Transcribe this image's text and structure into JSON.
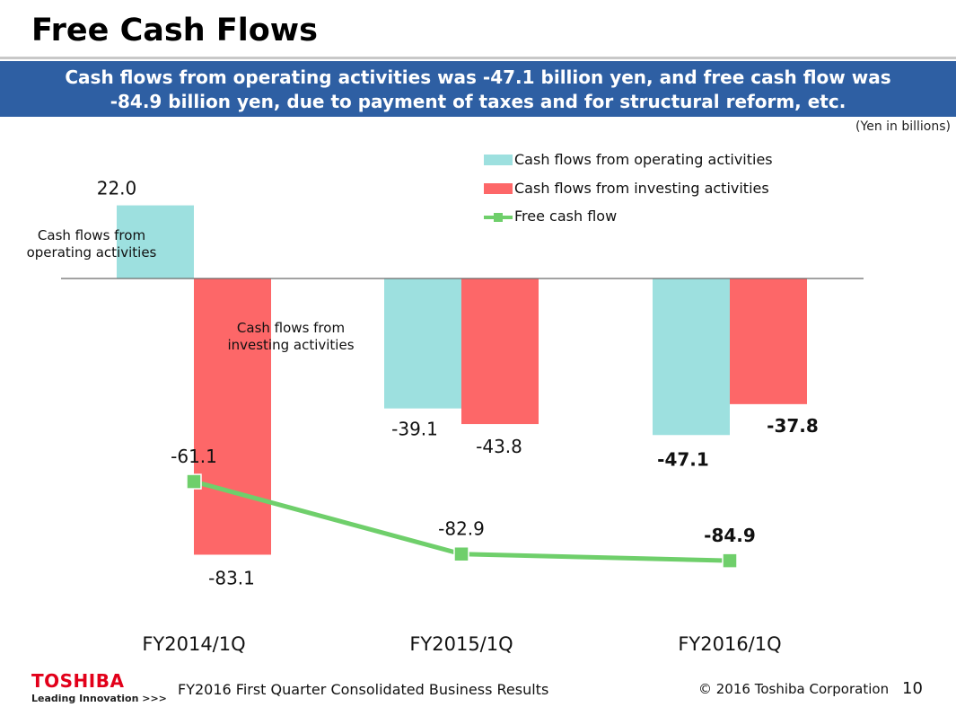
{
  "slide": {
    "title": "Free Cash Flows",
    "banner_line1": "Cash flows from operating activities was -47.1 billion yen, and free cash flow was",
    "banner_line2": "-84.9 billion yen, due to payment of taxes and for structural reform, etc.",
    "units": "(Yen in billions)"
  },
  "colors": {
    "banner": "#2e5fa3",
    "operating": "#9de0df",
    "investing": "#fd6768",
    "free_cash_flow": "#6fcf6b",
    "brand_red": "#e2001a"
  },
  "chart_data": {
    "type": "bar",
    "title": "Free Cash Flows",
    "units": "(Yen in billions)",
    "categories": [
      "FY2014/1Q",
      "FY2015/1Q",
      "FY2016/1Q"
    ],
    "series": [
      {
        "name": "Cash flows from operating activities",
        "kind": "bar",
        "values": [
          22.0,
          -39.1,
          -47.1
        ],
        "labels": [
          "22.0",
          "-39.1",
          "-47.1"
        ],
        "bold": [
          false,
          false,
          true
        ]
      },
      {
        "name": "Cash flows from investing activities",
        "kind": "bar",
        "values": [
          -83.1,
          -43.8,
          -37.8
        ],
        "labels": [
          "-83.1",
          "-43.8",
          "-37.8"
        ],
        "bold": [
          false,
          false,
          true
        ]
      },
      {
        "name": "Free cash flow",
        "kind": "line",
        "values": [
          -61.1,
          -82.9,
          -84.9
        ],
        "labels": [
          "-61.1",
          "-82.9",
          "-84.9"
        ],
        "bold": [
          false,
          false,
          true
        ]
      }
    ],
    "ylim": [
      -105,
      30
    ],
    "grid": false,
    "legend_position": "top-right",
    "annotations": [
      {
        "text_line1": "Cash flows from",
        "text_line2": "operating activities"
      },
      {
        "text_line1": "Cash flows from",
        "text_line2": "investing activities"
      }
    ]
  },
  "footer": {
    "brand": "TOSHIBA",
    "tagline": "Leading Innovation >>>",
    "report": "FY2016 First Quarter Consolidated Business Results",
    "copyright": "© 2016 Toshiba Corporation",
    "page": "10"
  }
}
